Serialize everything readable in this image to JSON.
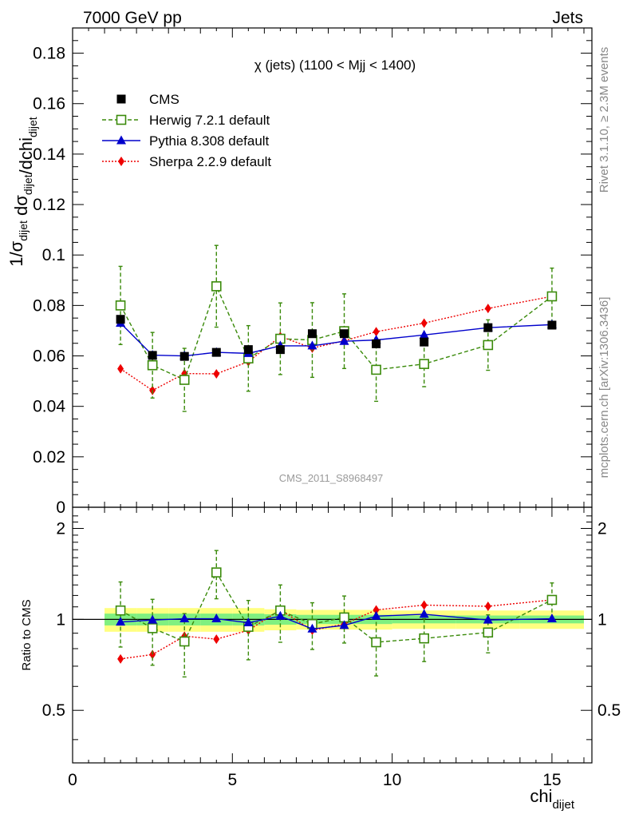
{
  "header": {
    "energy_label": "7000 GeV pp",
    "process_label": "Jets"
  },
  "side_labels": {
    "rivet": "Rivet 3.1.10, ≥ 2.3M events",
    "mcplots": "mcplots.cern.ch [arXiv:1306.3436]"
  },
  "watermark": "CMS_2011_S8968497",
  "colors": {
    "cms": "#000000",
    "herwig": "#3a8a0a",
    "pythia": "#0000cc",
    "sherpa": "#ee0000",
    "band_outer": "#ffff80",
    "band_inner": "#80f080"
  },
  "chart_data": [
    {
      "type": "scatter",
      "title": "χ (jets) (1100 < Mjj < 1400)",
      "ylabel": "1/σ_dijet dσ_dijet/dchi_dijet",
      "xlim": [
        0,
        16.25
      ],
      "ylim": [
        0,
        0.19
      ],
      "yticks": [
        "0",
        "0.02",
        "0.04",
        "0.06",
        "0.08",
        "0.1",
        "0.12",
        "0.14",
        "0.16",
        "0.18"
      ],
      "legend_position": "top-left",
      "x": [
        1.5,
        2.5,
        3.5,
        4.5,
        5.5,
        6.5,
        7.5,
        8.5,
        9.5,
        11,
        13,
        15
      ],
      "series": [
        {
          "name": "CMS",
          "key": "cms",
          "marker": "square",
          "values": [
            0.0745,
            0.0602,
            0.0598,
            0.0614,
            0.0625,
            0.0625,
            0.0688,
            0.0688,
            0.0648,
            0.0655,
            0.0712,
            0.0722
          ]
        },
        {
          "name": "Herwig 7.2.1 default",
          "key": "herwig",
          "marker": "open-square",
          "dash": "5,3",
          "values": [
            0.08,
            0.0563,
            0.0505,
            0.0876,
            0.059,
            0.0668,
            0.0663,
            0.0698,
            0.0545,
            0.0568,
            0.0643,
            0.0836
          ],
          "err": [
            0.0155,
            0.013,
            0.0125,
            0.0162,
            0.013,
            0.0142,
            0.0148,
            0.0148,
            0.0125,
            0.009,
            0.01,
            0.0112
          ]
        },
        {
          "name": "Pythia 8.308 default",
          "key": "pythia",
          "marker": "triangle",
          "values": [
            0.073,
            0.0603,
            0.06,
            0.0614,
            0.061,
            0.064,
            0.064,
            0.0658,
            0.0663,
            0.0683,
            0.0712,
            0.0724
          ],
          "err": [
            0.001,
            0.001,
            0.001,
            0.001,
            0.001,
            0.001,
            0.001,
            0.001,
            0.001,
            0.001,
            0.001,
            0.001
          ]
        },
        {
          "name": "Sherpa 2.2.9 default",
          "key": "sherpa",
          "marker": "diamond",
          "dash": "2,2",
          "values": [
            0.0549,
            0.0463,
            0.053,
            0.0529,
            0.0577,
            0.0677,
            0.0631,
            0.066,
            0.0696,
            0.073,
            0.0788,
            0.0836
          ],
          "err": [
            0.0015,
            0.0015,
            0.0015,
            0.0015,
            0.0015,
            0.0015,
            0.0015,
            0.0015,
            0.0015,
            0.0012,
            0.001,
            0.001
          ]
        }
      ]
    },
    {
      "type": "scatter",
      "ylabel": "Ratio to CMS",
      "xlabel": "chi_dijet",
      "xlim": [
        0,
        16.25
      ],
      "ylim": [
        0.335,
        2.35
      ],
      "yscale": "log",
      "yticks": [
        "0.5",
        "1",
        "2"
      ],
      "xticks": [
        "0",
        "5",
        "10",
        "15"
      ],
      "x": [
        1.5,
        2.5,
        3.5,
        4.5,
        5.5,
        6.5,
        7.5,
        8.5,
        9.5,
        11,
        13,
        15
      ],
      "bands": {
        "x_edges": [
          1,
          2,
          3,
          4,
          5,
          6,
          7,
          8,
          9,
          10,
          12,
          14,
          16
        ],
        "outer": [
          0.09,
          0.09,
          0.09,
          0.09,
          0.09,
          0.08,
          0.075,
          0.075,
          0.075,
          0.07,
          0.07,
          0.07
        ],
        "inner": [
          0.045,
          0.045,
          0.045,
          0.045,
          0.045,
          0.04,
          0.035,
          0.035,
          0.035,
          0.03,
          0.03,
          0.03
        ]
      },
      "series": [
        {
          "name": "Herwig 7.2.1 default",
          "key": "herwig",
          "values": [
            1.07,
            0.935,
            0.845,
            1.43,
            0.945,
            1.07,
            0.965,
            1.015,
            0.84,
            0.865,
            0.905,
            1.16
          ],
          "err": [
            0.26,
            0.23,
            0.2,
            0.26,
            0.21,
            0.23,
            0.17,
            0.18,
            0.19,
            0.14,
            0.13,
            0.16
          ]
        },
        {
          "name": "Pythia 8.308 default",
          "key": "pythia",
          "values": [
            0.98,
            0.995,
            1.005,
            1.005,
            0.975,
            1.025,
            0.93,
            0.955,
            1.025,
            1.04,
            0.995,
            1.005
          ],
          "err": [
            0.015,
            0.015,
            0.015,
            0.015,
            0.015,
            0.015,
            0.015,
            0.015,
            0.015,
            0.015,
            0.015,
            0.015
          ]
        },
        {
          "name": "Sherpa 2.2.9 default",
          "key": "sherpa",
          "values": [
            0.74,
            0.765,
            0.88,
            0.86,
            0.92,
            1.075,
            0.92,
            0.965,
            1.075,
            1.115,
            1.105,
            1.16
          ],
          "err": [
            0.02,
            0.025,
            0.025,
            0.025,
            0.025,
            0.025,
            0.025,
            0.025,
            0.025,
            0.02,
            0.02,
            0.015
          ]
        }
      ]
    }
  ]
}
